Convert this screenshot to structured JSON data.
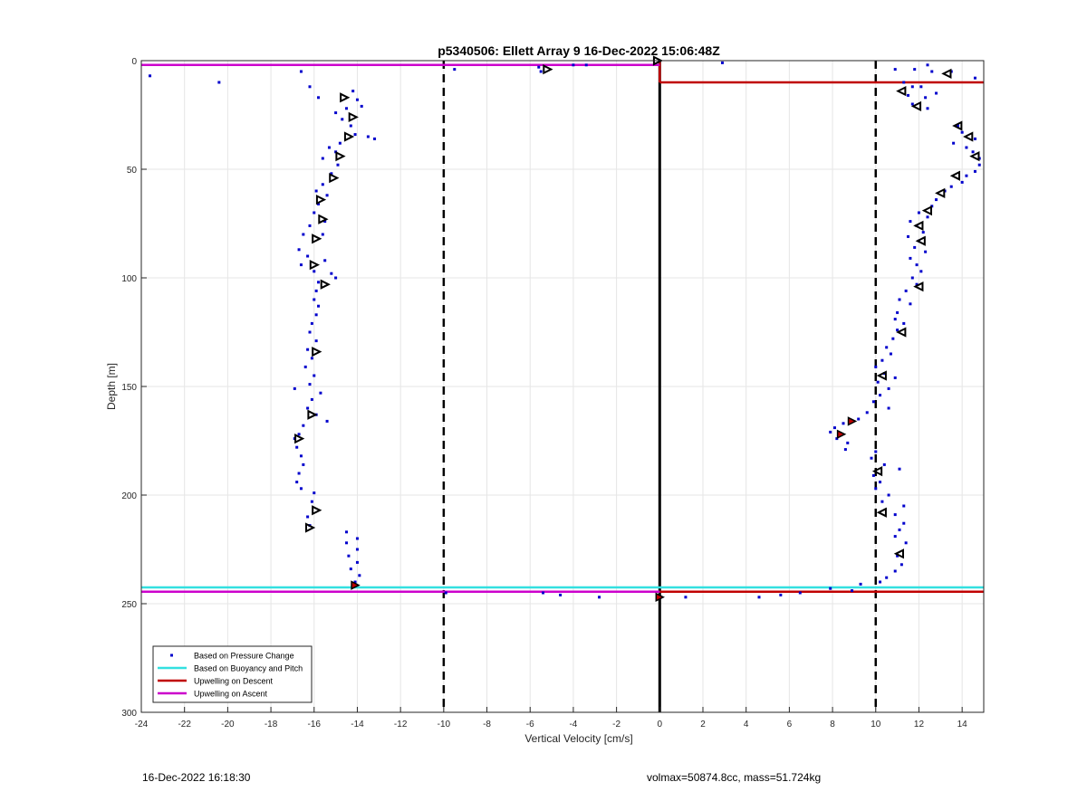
{
  "footer": {
    "left": "16-Dec-2022 16:18:30",
    "right": "volmax=50874.8cc, mass=51.724kg"
  },
  "colors": {
    "pressure": "#0000cc",
    "buoyancy": "#33e0e0",
    "descent": "#c00000",
    "ascent": "#cc00cc",
    "zero_line": "#000000",
    "markers": "#000000"
  },
  "chart_data": {
    "type": "scatter",
    "title": "p5340506: Ellett Array 9 16-Dec-2022 15:06:48Z",
    "xlabel": "Vertical Velocity [cm/s]",
    "ylabel": "Depth [m]",
    "xlim": [
      -24,
      15
    ],
    "ylim": [
      0,
      300
    ],
    "y_reversed": true,
    "grid": true,
    "xticks": [
      -24,
      -22,
      -20,
      -18,
      -16,
      -14,
      -12,
      -10,
      -8,
      -6,
      -4,
      -2,
      0,
      2,
      4,
      6,
      8,
      10,
      12,
      14
    ],
    "yticks": [
      0,
      50,
      100,
      150,
      200,
      250,
      300
    ],
    "legend": {
      "placement": "bottom-left",
      "entries": [
        "Based on Pressure Change",
        "Based on Buoyancy and Pitch",
        "Upwelling on Descent",
        "Upwelling on Ascent"
      ]
    },
    "reference_lines": {
      "dashed_x": [
        -10,
        10
      ],
      "solid_x": [
        0
      ]
    },
    "series": [
      {
        "name": "Based on Pressure Change",
        "style": "dots",
        "points": [
          [
            -23.6,
            7
          ],
          [
            -20.4,
            10
          ],
          [
            -16.6,
            5
          ],
          [
            -16.2,
            12
          ],
          [
            -15.8,
            17
          ],
          [
            -14.2,
            14
          ],
          [
            -14.0,
            18
          ],
          [
            -14.5,
            22
          ],
          [
            -14.7,
            27
          ],
          [
            -15.0,
            24
          ],
          [
            -14.3,
            30
          ],
          [
            -13.8,
            21
          ],
          [
            -14.1,
            34
          ],
          [
            -13.5,
            35
          ],
          [
            -13.2,
            36
          ],
          [
            -14.8,
            38
          ],
          [
            -15.0,
            42
          ],
          [
            -15.3,
            40
          ],
          [
            -15.6,
            45
          ],
          [
            -14.9,
            48
          ],
          [
            -15.2,
            52
          ],
          [
            -15.6,
            57
          ],
          [
            -15.9,
            60
          ],
          [
            -15.4,
            62
          ],
          [
            -15.8,
            66
          ],
          [
            -16.0,
            70
          ],
          [
            -15.5,
            74
          ],
          [
            -16.2,
            76
          ],
          [
            -16.5,
            80
          ],
          [
            -15.6,
            80
          ],
          [
            -16.7,
            87
          ],
          [
            -16.3,
            90
          ],
          [
            -15.5,
            92
          ],
          [
            -16.6,
            94
          ],
          [
            -16.0,
            97
          ],
          [
            -15.2,
            98
          ],
          [
            -15.0,
            100
          ],
          [
            -15.8,
            102
          ],
          [
            -15.9,
            106
          ],
          [
            -16.0,
            110
          ],
          [
            -15.8,
            113
          ],
          [
            -15.9,
            117
          ],
          [
            -16.1,
            121
          ],
          [
            -16.2,
            125
          ],
          [
            -15.9,
            129
          ],
          [
            -16.3,
            133
          ],
          [
            -16.1,
            137
          ],
          [
            -16.4,
            141
          ],
          [
            -16.0,
            145
          ],
          [
            -16.2,
            149
          ],
          [
            -16.9,
            151
          ],
          [
            -15.7,
            153
          ],
          [
            -16.1,
            156
          ],
          [
            -16.3,
            160
          ],
          [
            -15.9,
            163
          ],
          [
            -15.4,
            166
          ],
          [
            -16.5,
            168
          ],
          [
            -16.7,
            172
          ],
          [
            -16.9,
            174
          ],
          [
            -16.8,
            178
          ],
          [
            -16.6,
            182
          ],
          [
            -16.5,
            186
          ],
          [
            -16.7,
            190
          ],
          [
            -16.8,
            194
          ],
          [
            -16.6,
            197
          ],
          [
            -16.0,
            199
          ],
          [
            -16.1,
            203
          ],
          [
            -16.3,
            210
          ],
          [
            -16.2,
            214
          ],
          [
            -14.5,
            217
          ],
          [
            -14.0,
            220
          ],
          [
            -14.5,
            222
          ],
          [
            -14.0,
            225
          ],
          [
            -14.4,
            228
          ],
          [
            -14.0,
            231
          ],
          [
            -14.3,
            234
          ],
          [
            -13.9,
            237
          ],
          [
            -14.1,
            240
          ],
          [
            -14.2,
            242
          ],
          [
            -9.5,
            4
          ],
          [
            -5.6,
            3
          ],
          [
            -5.5,
            5
          ],
          [
            -4.0,
            2
          ],
          [
            -3.4,
            2
          ],
          [
            -5.4,
            245
          ],
          [
            -4.6,
            246
          ],
          [
            -2.8,
            247
          ],
          [
            -9.9,
            245
          ],
          [
            1.2,
            247
          ],
          [
            2.9,
            1
          ],
          [
            10.9,
            4
          ],
          [
            11.8,
            4
          ],
          [
            12.4,
            2
          ],
          [
            12.6,
            5
          ],
          [
            13.5,
            5
          ],
          [
            14.6,
            8
          ],
          [
            11.3,
            10
          ],
          [
            11.7,
            12
          ],
          [
            12.1,
            12
          ],
          [
            11.5,
            16
          ],
          [
            12.8,
            15
          ],
          [
            12.3,
            17
          ],
          [
            11.7,
            20
          ],
          [
            12.4,
            22
          ],
          [
            13.8,
            30
          ],
          [
            14.0,
            33
          ],
          [
            14.6,
            36
          ],
          [
            13.6,
            38
          ],
          [
            14.2,
            40
          ],
          [
            14.5,
            42
          ],
          [
            14.8,
            45
          ],
          [
            14.8,
            48
          ],
          [
            14.6,
            51
          ],
          [
            14.2,
            53
          ],
          [
            14.0,
            56
          ],
          [
            13.5,
            58
          ],
          [
            13.2,
            60
          ],
          [
            12.8,
            64
          ],
          [
            12.6,
            67
          ],
          [
            12.0,
            70
          ],
          [
            12.4,
            72
          ],
          [
            11.6,
            74
          ],
          [
            11.9,
            76
          ],
          [
            12.2,
            79
          ],
          [
            11.5,
            81
          ],
          [
            12.0,
            83
          ],
          [
            11.8,
            86
          ],
          [
            12.3,
            88
          ],
          [
            11.6,
            91
          ],
          [
            11.9,
            94
          ],
          [
            12.1,
            97
          ],
          [
            11.7,
            100
          ],
          [
            11.9,
            103
          ],
          [
            11.4,
            106
          ],
          [
            11.1,
            110
          ],
          [
            11.6,
            112
          ],
          [
            11.0,
            116
          ],
          [
            10.9,
            119
          ],
          [
            11.3,
            121
          ],
          [
            11.0,
            124
          ],
          [
            10.8,
            128
          ],
          [
            10.5,
            132
          ],
          [
            10.7,
            135
          ],
          [
            10.3,
            138
          ],
          [
            10.0,
            141
          ],
          [
            10.4,
            144
          ],
          [
            10.9,
            146
          ],
          [
            10.1,
            148
          ],
          [
            10.6,
            151
          ],
          [
            10.2,
            154
          ],
          [
            9.9,
            157
          ],
          [
            10.6,
            160
          ],
          [
            9.6,
            162
          ],
          [
            9.2,
            165
          ],
          [
            8.5,
            167
          ],
          [
            8.1,
            169
          ],
          [
            7.9,
            171
          ],
          [
            8.2,
            174
          ],
          [
            8.7,
            176
          ],
          [
            8.6,
            179
          ],
          [
            10.0,
            180
          ],
          [
            9.8,
            183
          ],
          [
            10.4,
            186
          ],
          [
            11.1,
            188
          ],
          [
            9.9,
            191
          ],
          [
            10.2,
            194
          ],
          [
            10.0,
            197
          ],
          [
            10.6,
            200
          ],
          [
            10.3,
            203
          ],
          [
            11.3,
            205
          ],
          [
            10.9,
            209
          ],
          [
            11.3,
            213
          ],
          [
            11.1,
            216
          ],
          [
            10.9,
            219
          ],
          [
            11.4,
            222
          ],
          [
            11.0,
            228
          ],
          [
            11.2,
            232
          ],
          [
            10.9,
            235
          ],
          [
            10.5,
            238
          ],
          [
            10.2,
            240
          ],
          [
            9.3,
            241
          ],
          [
            7.9,
            243
          ],
          [
            8.9,
            244
          ],
          [
            6.5,
            245
          ],
          [
            5.6,
            246
          ],
          [
            4.6,
            247
          ]
        ]
      },
      {
        "name": "Based on Buoyancy and Pitch",
        "style": "line",
        "segments": [
          [
            [
              -24,
              242.5
            ],
            [
              15,
              242.5
            ]
          ]
        ]
      },
      {
        "name": "Upwelling on Descent",
        "style": "line",
        "segments": [
          [
            [
              0,
              0
            ],
            [
              0,
              10
            ]
          ],
          [
            [
              0,
              10
            ],
            [
              15,
              10
            ]
          ],
          [
            [
              0,
              244.5
            ],
            [
              15,
              244.5
            ]
          ]
        ]
      },
      {
        "name": "Upwelling on Ascent",
        "style": "line",
        "segments": [
          [
            [
              -24,
              2
            ],
            [
              0,
              2
            ]
          ],
          [
            [
              -24,
              244.5
            ],
            [
              0,
              244.5
            ]
          ]
        ]
      }
    ],
    "triangle_markers": {
      "ascent": [
        [
          -14.6,
          17
        ],
        [
          -14.2,
          26
        ],
        [
          -14.4,
          35
        ],
        [
          -14.8,
          44
        ],
        [
          -15.1,
          54
        ],
        [
          -15.7,
          64
        ],
        [
          -15.6,
          73
        ],
        [
          -15.9,
          82
        ],
        [
          -16.0,
          94
        ],
        [
          -15.5,
          103
        ],
        [
          -15.9,
          134
        ],
        [
          -16.1,
          163
        ],
        [
          -16.7,
          174
        ],
        [
          -15.9,
          207
        ],
        [
          -16.2,
          215
        ],
        [
          -5.2,
          4
        ],
        [
          -0.1,
          0
        ]
      ],
      "descent": [
        [
          13.3,
          6
        ],
        [
          11.2,
          14
        ],
        [
          11.9,
          21
        ],
        [
          13.8,
          30
        ],
        [
          14.3,
          35
        ],
        [
          14.6,
          44
        ],
        [
          13.7,
          53
        ],
        [
          13.0,
          61
        ],
        [
          12.4,
          69
        ],
        [
          12.0,
          76
        ],
        [
          12.1,
          83
        ],
        [
          12.0,
          104
        ],
        [
          11.2,
          125
        ],
        [
          10.3,
          145
        ],
        [
          10.1,
          189
        ],
        [
          10.3,
          208
        ],
        [
          11.1,
          227
        ]
      ]
    },
    "red_markers": [
      [
        -14.1,
        241.5
      ],
      [
        0,
        247
      ],
      [
        8.9,
        166
      ],
      [
        8.4,
        172
      ]
    ]
  }
}
